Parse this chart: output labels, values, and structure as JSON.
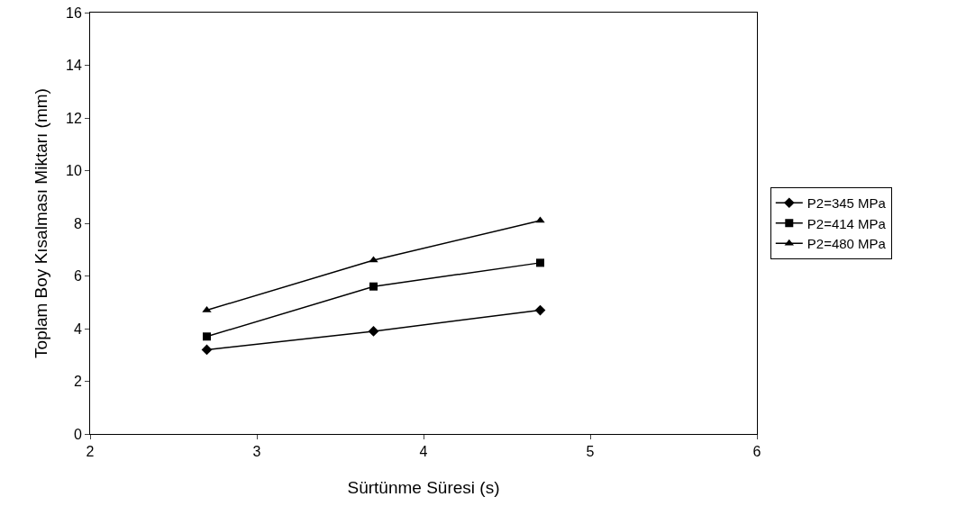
{
  "chart_data": {
    "type": "line",
    "xlabel": "Sürtünme Süresi (s)",
    "ylabel": "Toplam Boy Kısalması Miktarı (mm)",
    "x": [
      2.7,
      3.7,
      4.7
    ],
    "series": [
      {
        "name": "P2=345 MPa",
        "color": "#000000",
        "marker": "diamond",
        "values": [
          3.2,
          3.9,
          4.7
        ]
      },
      {
        "name": "P2=414 MPa",
        "color": "#000000",
        "marker": "square",
        "values": [
          3.7,
          5.6,
          6.5
        ]
      },
      {
        "name": "P2=480 MPa",
        "color": "#000000",
        "marker": "triangle",
        "values": [
          4.7,
          6.6,
          8.1
        ]
      }
    ],
    "xlim": [
      2,
      6
    ],
    "xticks": [
      2,
      3,
      4,
      5,
      6
    ],
    "ylim": [
      0,
      16
    ],
    "yticks": [
      0,
      2,
      4,
      6,
      8,
      10,
      12,
      14,
      16
    ],
    "grid": false,
    "legend": "right",
    "line_style": "solid"
  }
}
